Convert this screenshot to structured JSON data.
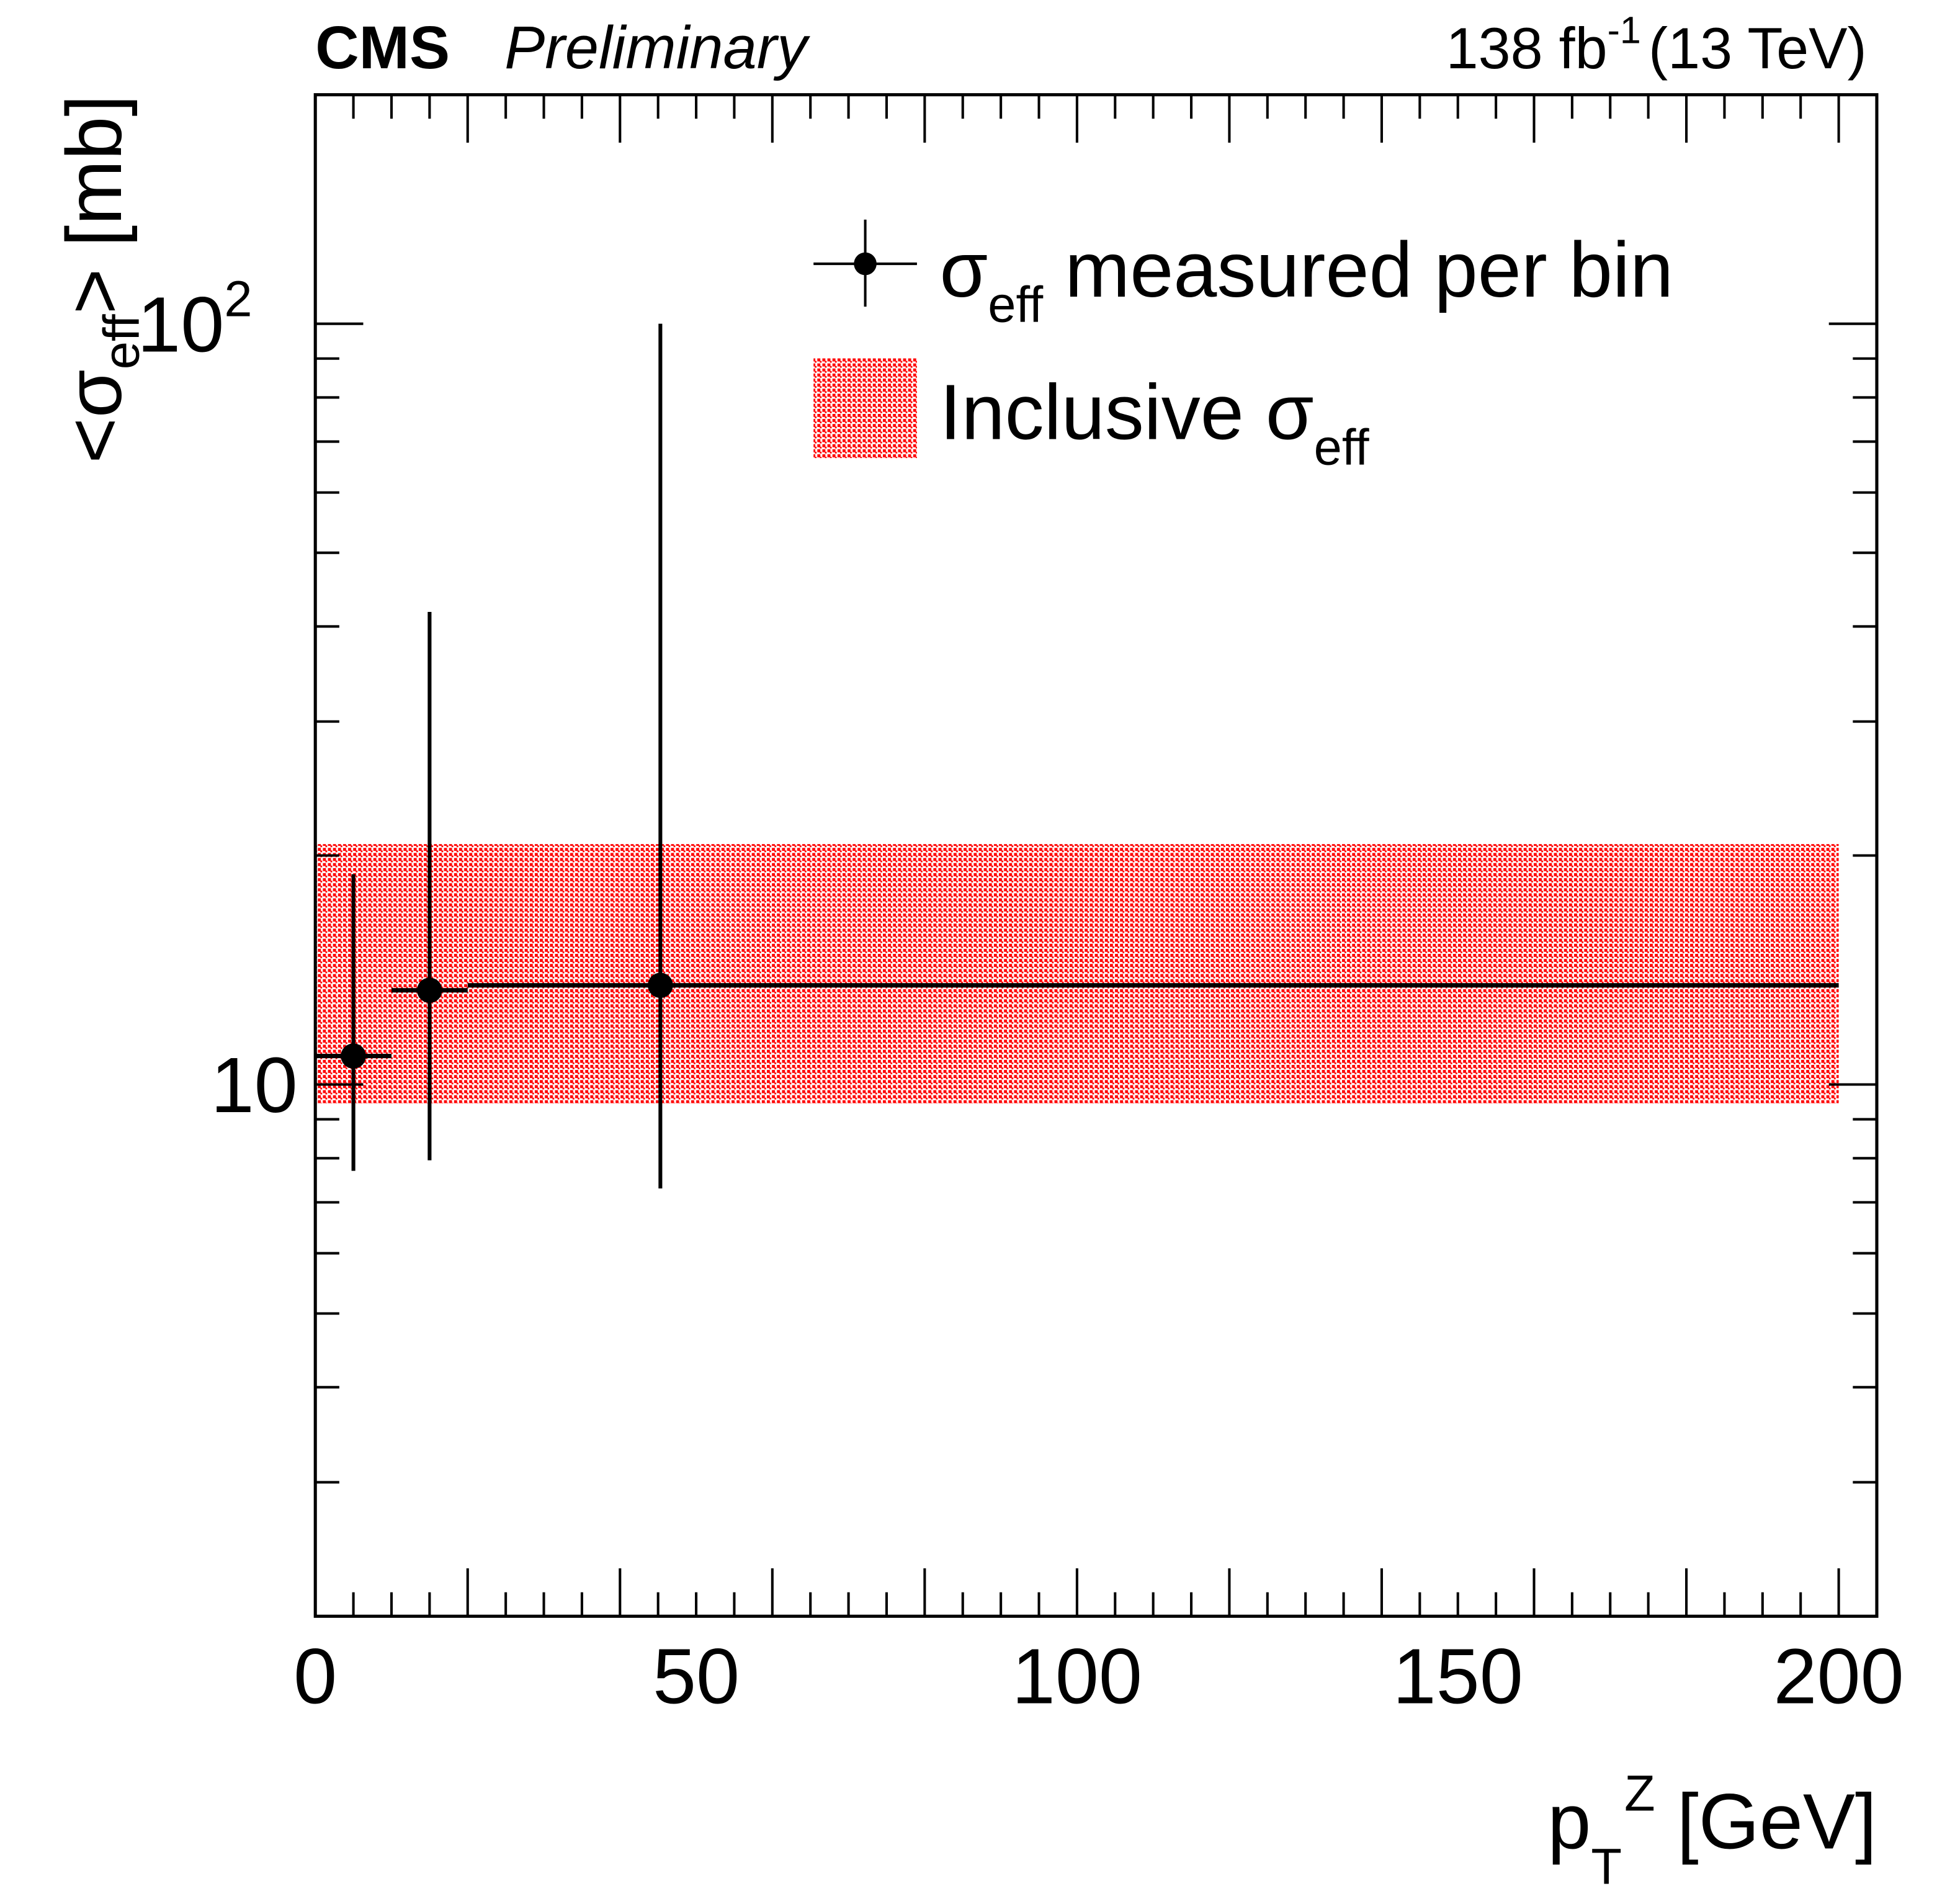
{
  "header": {
    "experiment": "CMS",
    "status": "Preliminary",
    "lumi_value": "138 fb",
    "lumi_exp": "-1",
    "energy": "(13 TeV)"
  },
  "chart_data": {
    "type": "scatter",
    "xlabel": {
      "main": "p",
      "sup": "Z",
      "sub": "T",
      "unit": " [GeV]"
    },
    "ylabel": {
      "pre": "<σ",
      "sub": "eff",
      "post": "> [mb]"
    },
    "xlim": [
      0,
      205
    ],
    "ylim": [
      2,
      200
    ],
    "yscale": "log",
    "xticks": [
      {
        "v": 0,
        "label": "0"
      },
      {
        "v": 50,
        "label": "50"
      },
      {
        "v": 100,
        "label": "100"
      },
      {
        "v": 150,
        "label": "150"
      },
      {
        "v": 200,
        "label": "200"
      }
    ],
    "yticks": [
      {
        "v": 10,
        "label": "10",
        "sup": ""
      },
      {
        "v": 100,
        "label": "10",
        "sup": "2"
      }
    ],
    "series": [
      {
        "name": "σeff measured per bin",
        "points": [
          {
            "x": 5,
            "xlo": 0,
            "xhi": 10,
            "y": 10.9,
            "ylo": 7.7,
            "yhi": 18.9
          },
          {
            "x": 15,
            "xlo": 10,
            "xhi": 20,
            "y": 13.3,
            "ylo": 7.95,
            "yhi": 41.8
          },
          {
            "x": 45.3,
            "xlo": 20,
            "xhi": 200,
            "y": 13.5,
            "ylo": 7.3,
            "yhi": 100
          }
        ]
      }
    ],
    "band": {
      "name": "Inclusive σeff",
      "xlo": 0,
      "xhi": 200,
      "ylo": 9.45,
      "yhi": 20.7,
      "color": "#ff0000"
    },
    "legend": {
      "placement": "top-right",
      "entries": [
        {
          "pre": "σ",
          "sub": "eff",
          "post": " measured per bin"
        },
        {
          "pre": "Inclusive σ",
          "sub": "eff",
          "post": ""
        }
      ]
    }
  }
}
